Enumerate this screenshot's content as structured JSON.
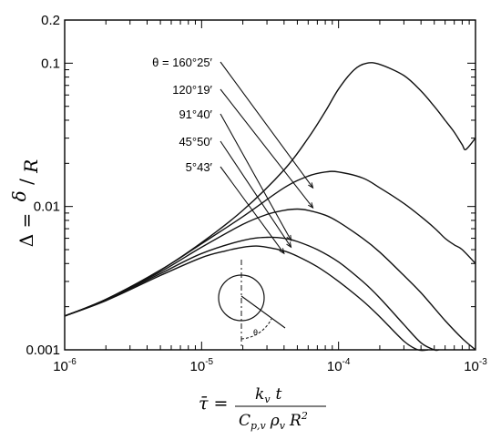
{
  "chart_data": {
    "type": "line",
    "title": "",
    "xscale": "log",
    "yscale": "log",
    "xlim": [
      1e-06,
      0.001
    ],
    "ylim": [
      0.001,
      0.2
    ],
    "x_ticks": [
      {
        "value": 1e-06,
        "base": "10",
        "exp": "-6"
      },
      {
        "value": 1e-05,
        "base": "10",
        "exp": "-5"
      },
      {
        "value": 0.0001,
        "base": "10",
        "exp": "-4"
      },
      {
        "value": 0.001,
        "base": "10",
        "exp": "-3"
      }
    ],
    "y_ticks": [
      {
        "value": 0.001,
        "label": "0.001"
      },
      {
        "value": 0.01,
        "label": "0.01"
      },
      {
        "value": 0.1,
        "label": "0.1"
      },
      {
        "value": 0.2,
        "label": "0.2"
      }
    ],
    "xlabel": {
      "lhs": "τ̄ =",
      "num": "k",
      "num_sub": "v",
      "num_t": "t",
      "den": "C",
      "den_sub1": "p,v",
      "den_rho": "ρ",
      "den_sub2": "v",
      "den_R": "R",
      "den_exp": "2"
    },
    "ylabel": {
      "lhs": "Δ =",
      "num": "δ",
      "den": "R"
    },
    "grid": false,
    "legend": "annotations",
    "series": [
      {
        "name": "θ = 160°25′",
        "x": [
          1e-06,
          2e-06,
          5e-06,
          1e-05,
          2e-05,
          4e-05,
          6e-05,
          8e-05,
          0.0001,
          0.00013,
          0.00016,
          0.0002,
          0.0003,
          0.0004,
          0.0005,
          0.0006,
          0.0007,
          0.0008,
          0.00085,
          0.001
        ],
        "y": [
          0.00172,
          0.00225,
          0.0036,
          0.0056,
          0.0094,
          0.018,
          0.03,
          0.046,
          0.066,
          0.09,
          0.1,
          0.098,
          0.082,
          0.064,
          0.05,
          0.04,
          0.033,
          0.027,
          0.025,
          0.03
        ]
      },
      {
        "name": "120°19′",
        "x": [
          1e-06,
          2e-06,
          5e-06,
          1e-05,
          2e-05,
          4e-05,
          6e-05,
          8e-05,
          0.0001,
          0.00015,
          0.0002,
          0.0003,
          0.0004,
          0.0005,
          0.0006,
          0.0007,
          0.0008,
          0.001
        ],
        "y": [
          0.00172,
          0.00225,
          0.0036,
          0.0055,
          0.0085,
          0.0135,
          0.0163,
          0.0174,
          0.0174,
          0.0158,
          0.0135,
          0.0105,
          0.0085,
          0.0071,
          0.006,
          0.0054,
          0.005,
          0.004
        ]
      },
      {
        "name": "91°40′",
        "x": [
          1e-06,
          2e-06,
          5e-06,
          1e-05,
          2e-05,
          3e-05,
          4e-05,
          5e-05,
          6e-05,
          8e-05,
          0.0001,
          0.00015,
          0.0002,
          0.0003,
          0.0004,
          0.0006,
          0.0008,
          0.001
        ],
        "y": [
          0.00172,
          0.00225,
          0.0035,
          0.0052,
          0.0075,
          0.0088,
          0.0094,
          0.0096,
          0.0094,
          0.0087,
          0.0078,
          0.006,
          0.0048,
          0.0033,
          0.0025,
          0.0016,
          0.0012,
          0.00095
        ]
      },
      {
        "name": "45°50′",
        "x": [
          1e-06,
          2e-06,
          5e-06,
          1e-05,
          2e-05,
          3e-05,
          4e-05,
          5e-05,
          7e-05,
          0.0001,
          0.00015,
          0.0002,
          0.0003,
          0.0004,
          0.0005,
          0.00054
        ],
        "y": [
          0.00172,
          0.00222,
          0.0034,
          0.0047,
          0.0058,
          0.0061,
          0.006,
          0.0057,
          0.005,
          0.0041,
          0.003,
          0.0023,
          0.0015,
          0.00112,
          0.0009,
          0.00082
        ]
      },
      {
        "name": "5°43′",
        "x": [
          1e-06,
          2e-06,
          5e-06,
          1e-05,
          1.5e-05,
          2e-05,
          2.5e-05,
          3e-05,
          4e-05,
          5e-05,
          7e-05,
          0.0001,
          0.00015,
          0.0002,
          0.0003,
          0.00038,
          0.00045
        ],
        "y": [
          0.00172,
          0.0022,
          0.0033,
          0.0044,
          0.0049,
          0.0052,
          0.0053,
          0.0052,
          0.0049,
          0.0045,
          0.0038,
          0.003,
          0.0022,
          0.0017,
          0.00115,
          0.0009,
          0.00078
        ]
      }
    ],
    "annotations": [
      {
        "label": "θ = 160°25′",
        "target_x": 6.5e-05,
        "target_y": 0.0135
      },
      {
        "label": "120°19′",
        "target_x": 6.5e-05,
        "target_y": 0.0098
      },
      {
        "label": "91°40′",
        "target_x": 4.5e-05,
        "target_y": 0.0058
      },
      {
        "label": "45°50′",
        "target_x": 4.5e-05,
        "target_y": 0.0052
      },
      {
        "label": "5°43′",
        "target_x": 4e-05,
        "target_y": 0.0047
      }
    ],
    "inset": {
      "label": "θ"
    }
  }
}
